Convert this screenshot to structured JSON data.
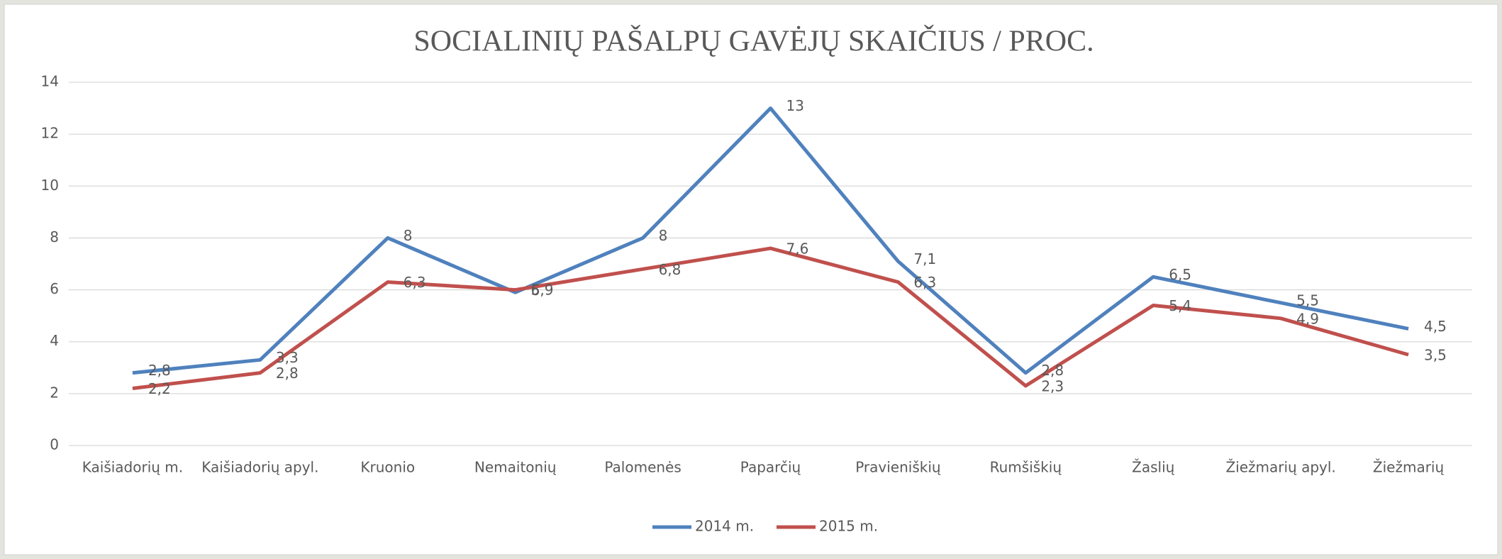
{
  "chart_data": {
    "type": "line",
    "title": "SOCIALINIŲ PAŠALPŲ GAVĖJŲ SKAIČIUS / PROC.",
    "categories": [
      "Kaišiadorių m.",
      "Kaišiadorių apyl.",
      "Kruonio",
      "Nemaitonių",
      "Palomenės",
      "Paparčių",
      "Pravieniškių",
      "Rumšiškių",
      "Žaslių",
      "Žiežmarių apyl.",
      "Žiežmarių"
    ],
    "series": [
      {
        "name": "2014 m.",
        "color": "#4f81bd",
        "values": [
          2.8,
          3.3,
          8,
          5.9,
          8,
          13,
          7.1,
          2.8,
          6.5,
          5.5,
          4.5
        ],
        "value_labels": [
          "2,8",
          "3,3",
          "8",
          "5,9",
          "8",
          "13",
          "7,1",
          "2,8",
          "6,5",
          "5,5",
          "4,5"
        ]
      },
      {
        "name": "2015 m.",
        "color": "#c0504d",
        "values": [
          2.2,
          2.8,
          6.3,
          6,
          6.8,
          7.6,
          6.3,
          2.3,
          5.4,
          4.9,
          3.5
        ],
        "value_labels": [
          "2,2",
          "2,8",
          "6,3",
          "6",
          "6,8",
          "7,6",
          "6,3",
          "2,3",
          "5,4",
          "4,9",
          "3,5"
        ]
      }
    ],
    "ylim": [
      0,
      14
    ],
    "yticks": [
      0,
      2,
      4,
      6,
      8,
      10,
      12,
      14
    ],
    "grid": true,
    "legend": "bottom"
  }
}
